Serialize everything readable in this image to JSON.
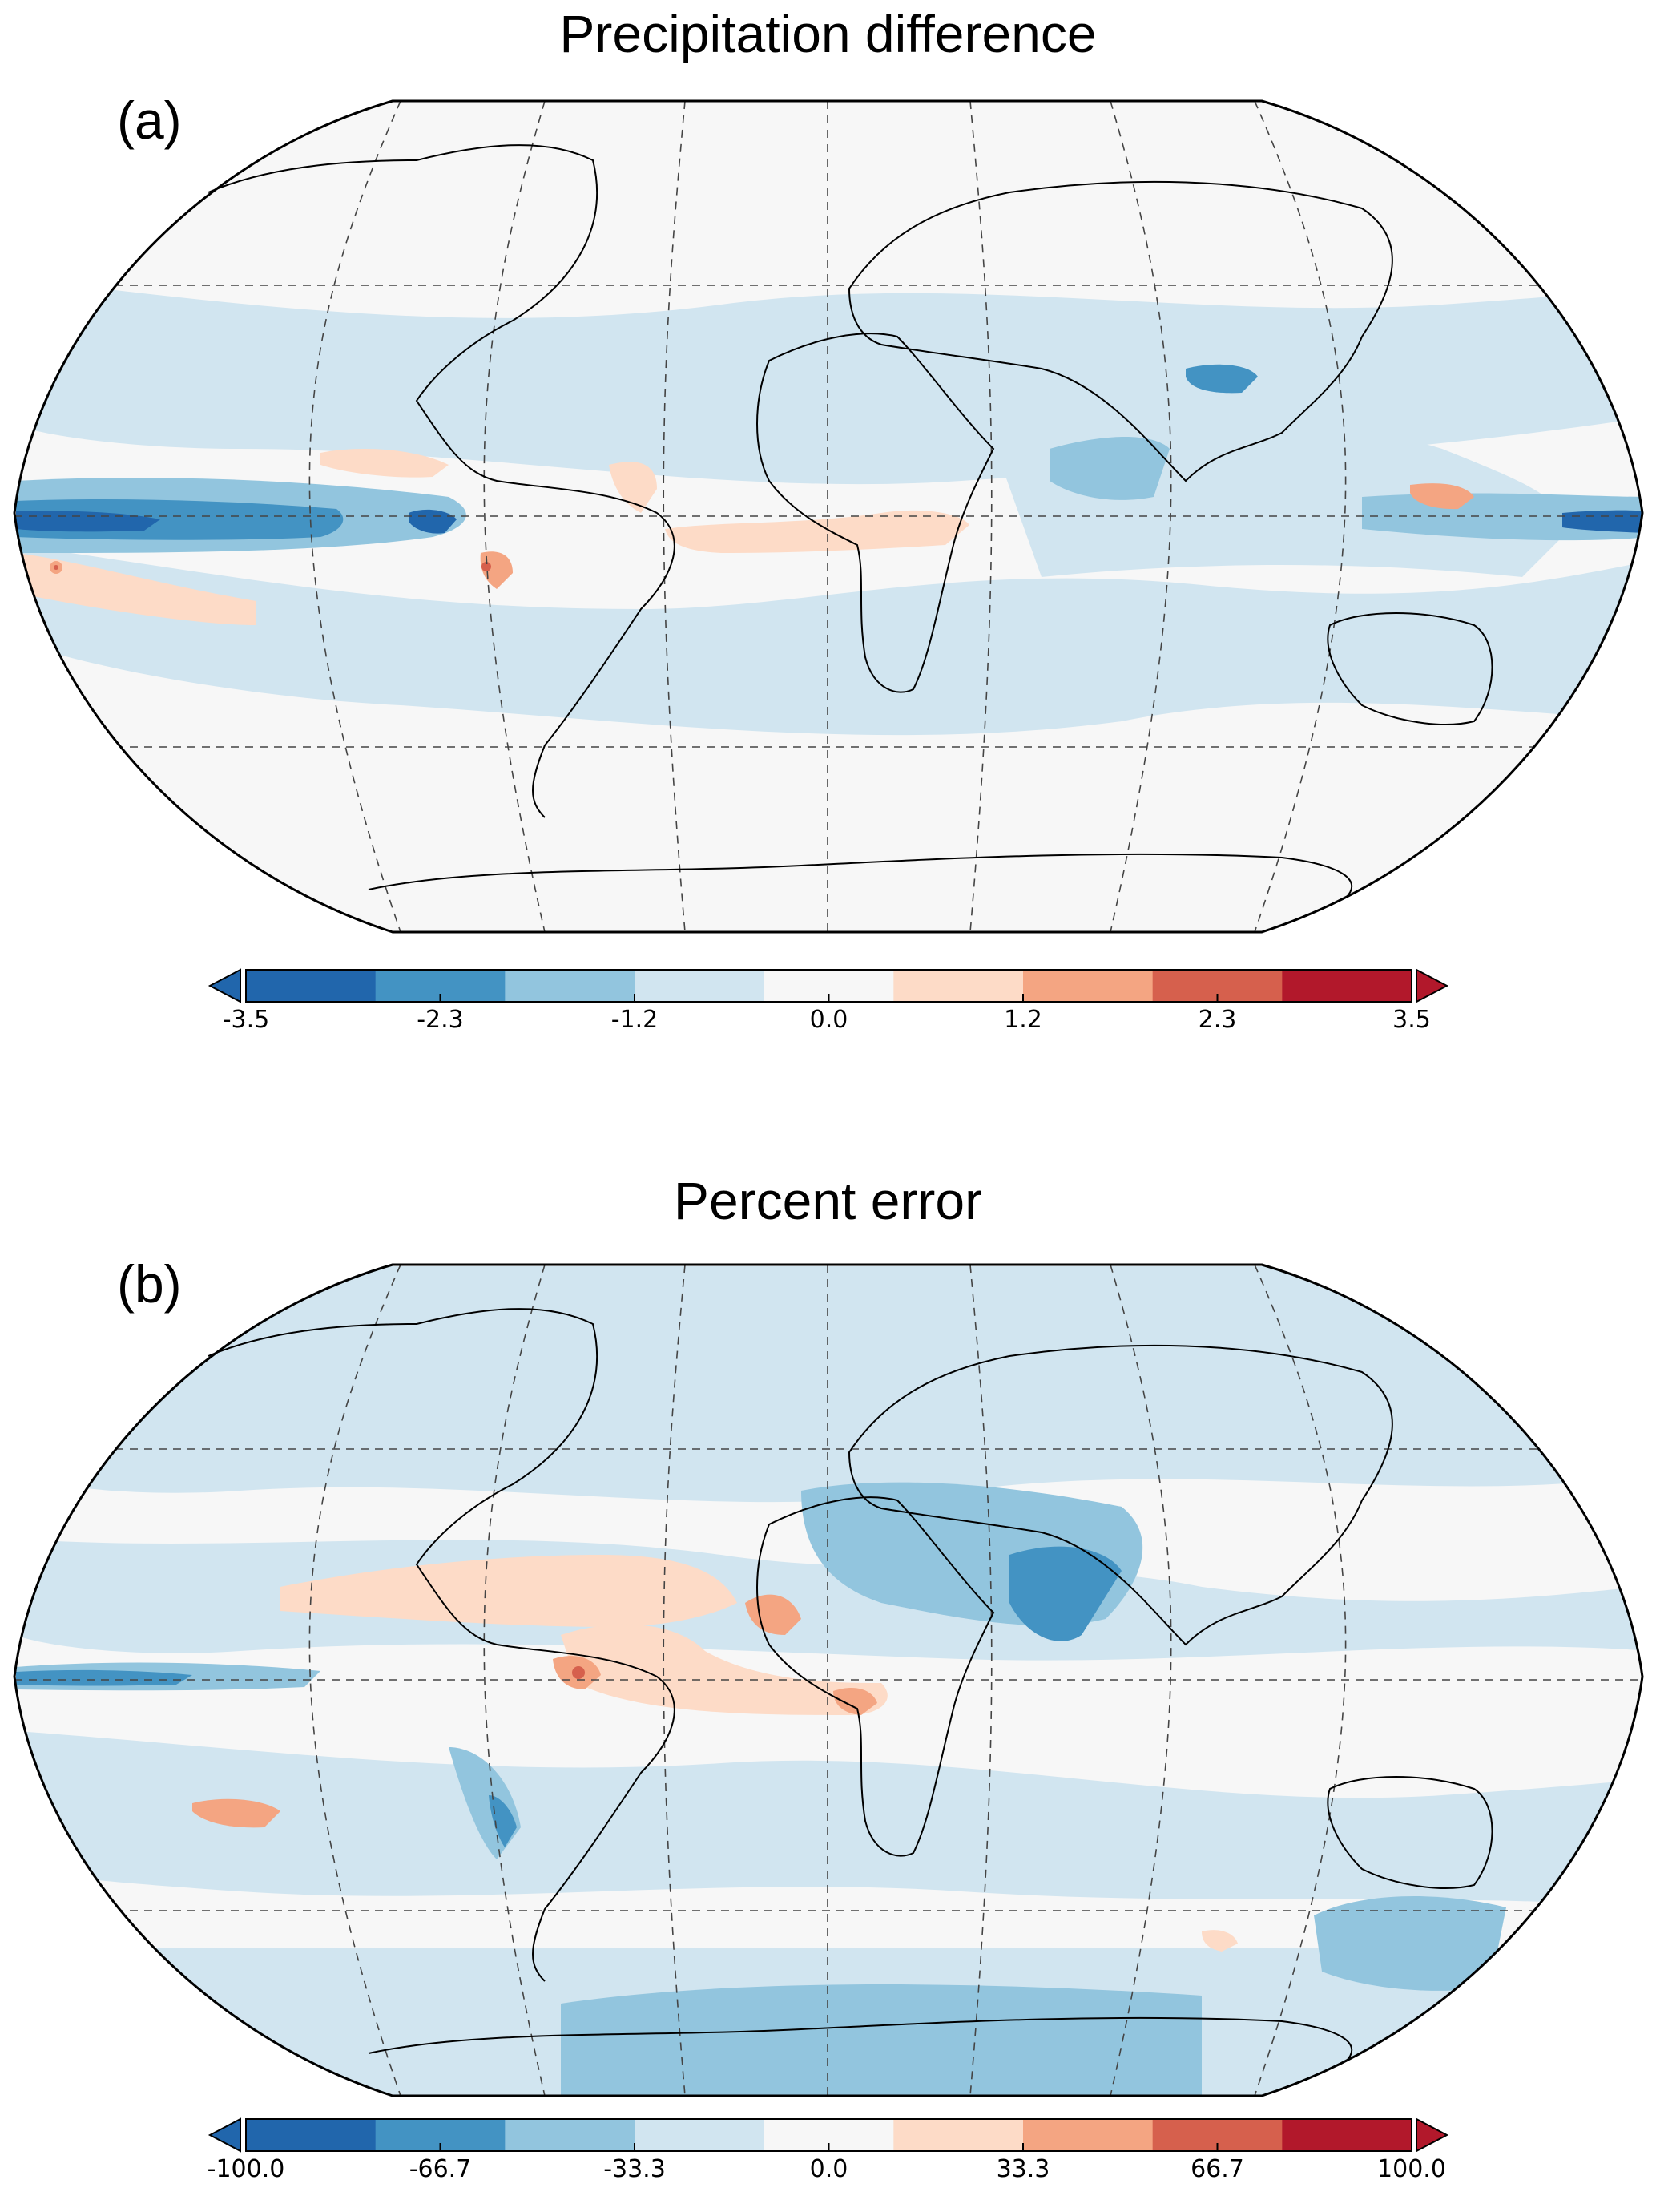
{
  "panels": [
    {
      "id": "a",
      "title": "Precipitation difference",
      "label": "(a)",
      "colorbar": {
        "ticks": [
          "-3.5",
          "-2.3",
          "-1.2",
          "0.0",
          "1.2",
          "2.3",
          "3.5"
        ],
        "colors": [
          "#2166ac",
          "#4393c3",
          "#92c5de",
          "#d1e5f0",
          "#f7f7f7",
          "#fddbc7",
          "#f4a582",
          "#d6604d",
          "#b2182b"
        ],
        "extend": "both"
      }
    },
    {
      "id": "b",
      "title": "Percent error",
      "label": "(b)",
      "colorbar": {
        "ticks": [
          "-100.0",
          "-66.7",
          "-33.3",
          "0.0",
          "33.3",
          "66.7",
          "100.0"
        ],
        "colors": [
          "#2166ac",
          "#4393c3",
          "#92c5de",
          "#d1e5f0",
          "#f7f7f7",
          "#fddbc7",
          "#f4a582",
          "#d6604d",
          "#b2182b"
        ],
        "extend": "both"
      }
    }
  ],
  "map": {
    "projection": "Robinson",
    "gridlines": "dashed",
    "ocean_color": "#f7f7f7",
    "coastline_color": "#000000"
  }
}
